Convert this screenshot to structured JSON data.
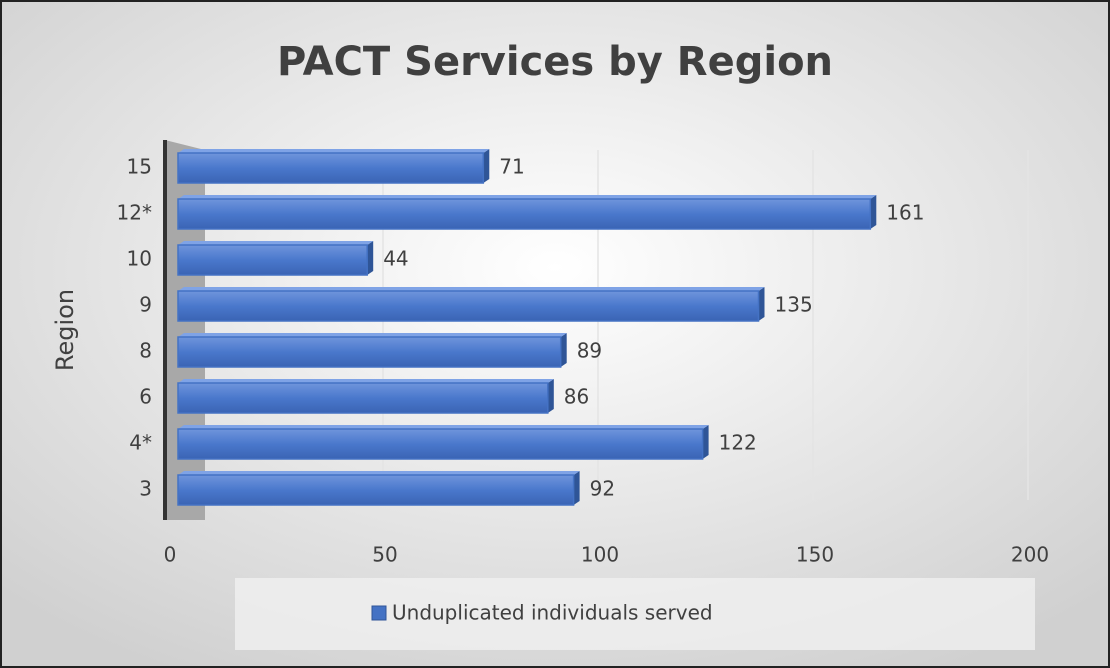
{
  "chart_data": {
    "type": "bar",
    "orientation": "horizontal",
    "title": "PACT Services by Region",
    "y_label": "Region",
    "categories": [
      "15",
      "12*",
      "10",
      "9",
      "8",
      "6",
      "4*",
      "3"
    ],
    "series": [
      {
        "name": "Unduplicated individuals served",
        "color": "#4472c4",
        "values": [
          71,
          161,
          44,
          135,
          89,
          86,
          122,
          92
        ]
      }
    ],
    "xlim": [
      0,
      200
    ],
    "xticks": [
      0,
      50,
      100,
      150,
      200
    ],
    "grid": true,
    "legend": "bottom"
  }
}
